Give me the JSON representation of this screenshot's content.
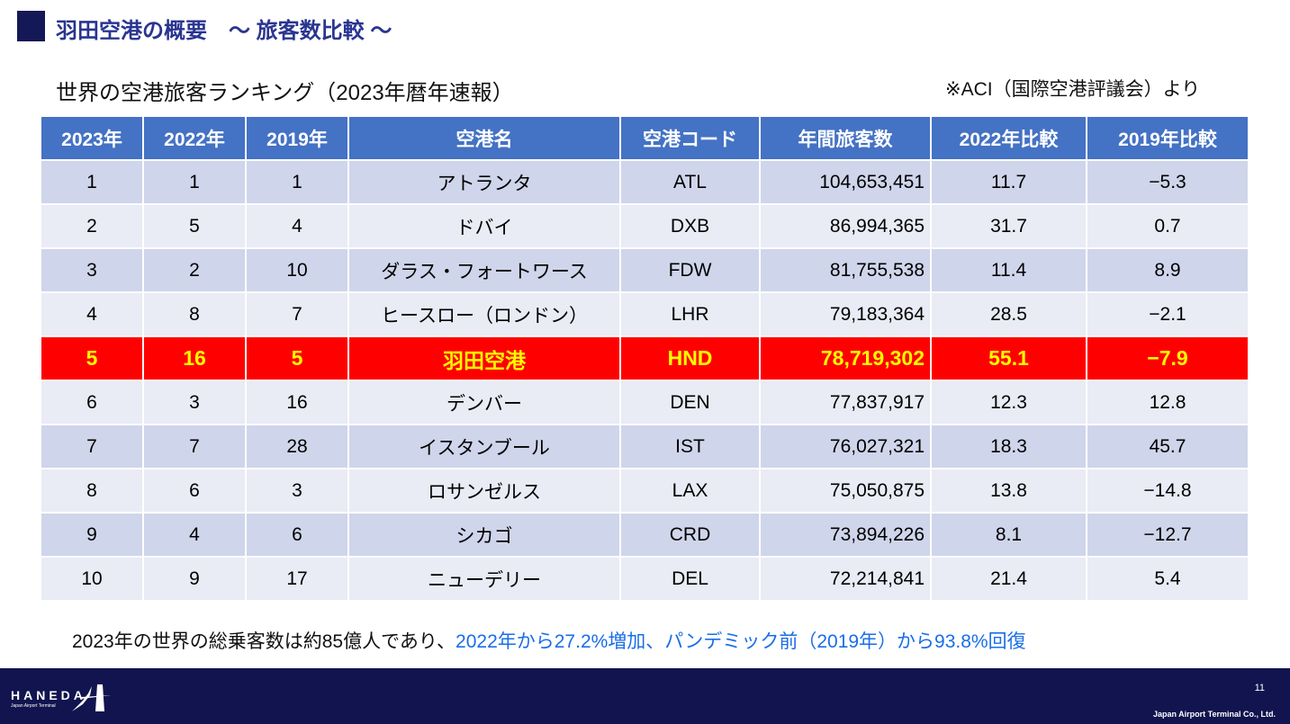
{
  "header": {
    "title": "羽田空港の概要　～ 旅客数比較 ～",
    "subtitle": "世界の空港旅客ランキング（2023年暦年速報）",
    "source": "※ACI（国際空港評議会）より"
  },
  "table": {
    "columns": [
      "2023年",
      "2022年",
      "2019年",
      "空港名",
      "空港コード",
      "年間旅客数",
      "2022年比較",
      "2019年比較"
    ],
    "rows": [
      [
        "1",
        "1",
        "1",
        "アトランタ",
        "ATL",
        "104,653,451",
        "11.7",
        "−5.3"
      ],
      [
        "2",
        "5",
        "4",
        "ドバイ",
        "DXB",
        "86,994,365",
        "31.7",
        "0.7"
      ],
      [
        "3",
        "2",
        "10",
        "ダラス・フォートワース",
        "FDW",
        "81,755,538",
        "11.4",
        "8.9"
      ],
      [
        "4",
        "8",
        "7",
        "ヒースロー（ロンドン）",
        "LHR",
        "79,183,364",
        "28.5",
        "−2.1"
      ],
      [
        "5",
        "16",
        "5",
        "羽田空港",
        "HND",
        "78,719,302",
        "55.1",
        "−7.9"
      ],
      [
        "6",
        "3",
        "16",
        "デンバー",
        "DEN",
        "77,837,917",
        "12.3",
        "12.8"
      ],
      [
        "7",
        "7",
        "28",
        "イスタンブール",
        "IST",
        "76,027,321",
        "18.3",
        "45.7"
      ],
      [
        "8",
        "6",
        "3",
        "ロサンゼルス",
        "LAX",
        "75,050,875",
        "13.8",
        "−14.8"
      ],
      [
        "9",
        "4",
        "6",
        "シカゴ",
        "CRD",
        "73,894,226",
        "8.1",
        "−12.7"
      ],
      [
        "10",
        "9",
        "17",
        "ニューデリー",
        "DEL",
        "72,214,841",
        "21.4",
        "5.4"
      ]
    ],
    "highlight_row": 4,
    "colors": {
      "header": "#4472c4",
      "highlight": "#ff0000",
      "highlight_text": "#ffff00"
    }
  },
  "note": {
    "plain": "2023年の世界の総乗客数は約85億人であり、",
    "blue": "2022年から27.2%増加、パンデミック前（2019年）から93.8%回復"
  },
  "footer": {
    "logo": "HANEDA",
    "logo_sub": "Japan Airport Terminal",
    "page": "11",
    "company": "Japan Airport Terminal Co., Ltd."
  }
}
